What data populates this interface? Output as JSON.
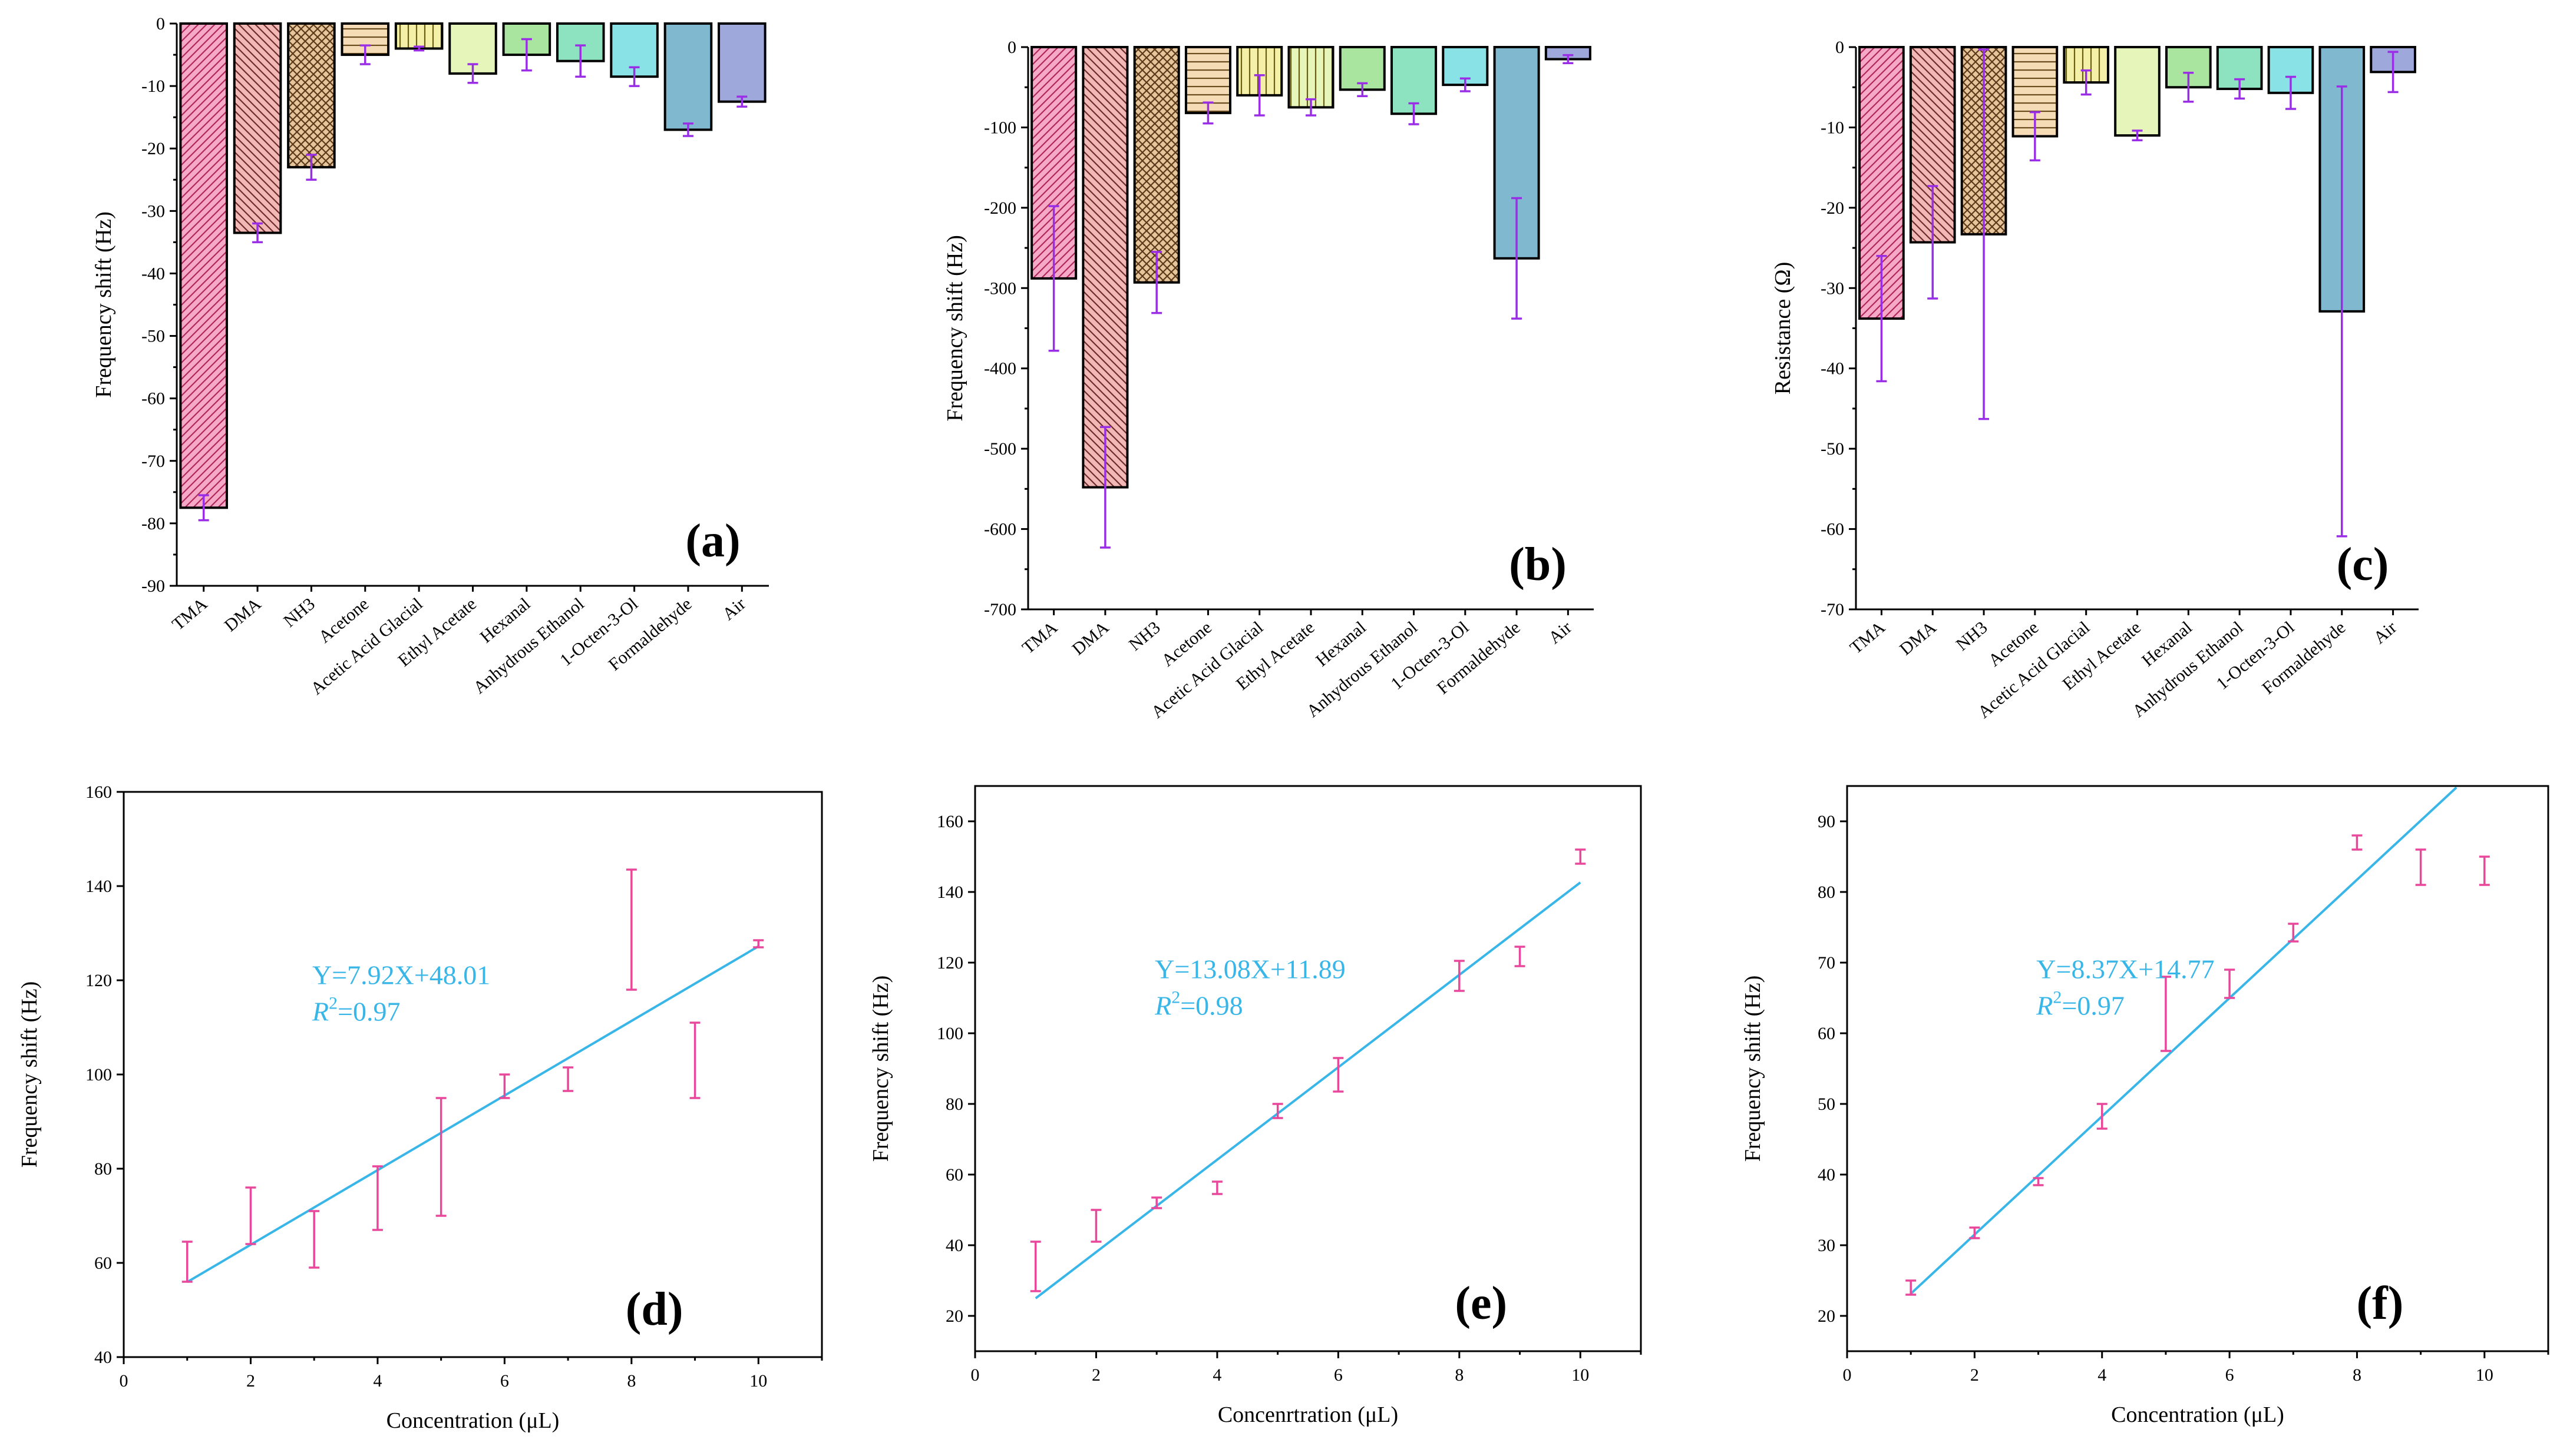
{
  "colors": {
    "bars": [
      "#F5A9C6",
      "#F2B8B5",
      "#E7C59A",
      "#F6DCB6",
      "#F5F0A8",
      "#E6F5B9",
      "#A9E59F",
      "#8DE3C0",
      "#88E2E6",
      "#7FB8CF",
      "#9EA8DA"
    ],
    "error_bars": "#9A2EE6",
    "scatter_error": "#E8479C",
    "fit_line": "#39B6E8"
  },
  "chart_data": [
    {
      "id": "a",
      "type": "bar",
      "panel_label": "(a)",
      "categories": [
        "TMA",
        "DMA",
        "NH3",
        "Acetone",
        "Acetic Acid Glacial",
        "Ethyl Acetate",
        "Hexanal",
        "Anhydrous Ethanol",
        "1-Octen-3-Ol",
        "Formaldehyde",
        "Air"
      ],
      "values": [
        -77.5,
        -33.5,
        -23,
        -5,
        -4,
        -8,
        -5,
        -6,
        -8.5,
        -17,
        -12.5
      ],
      "errors": [
        2,
        1.5,
        2,
        1.5,
        0.3,
        1.5,
        2.5,
        2.5,
        1.5,
        1,
        0.8
      ],
      "patterns": [
        "diag-right",
        "diag-left",
        "cross",
        "horiz",
        "vert",
        "none",
        "none",
        "none",
        "none",
        "none",
        "none"
      ],
      "ylabel": "Frequency shift (Hz)",
      "xlabel": "",
      "ylim": [
        -90,
        0
      ],
      "yticks": [
        0,
        -10,
        -20,
        -30,
        -40,
        -50,
        -60,
        -70,
        -80,
        -90
      ],
      "ytick_labels": [
        "0",
        "-10",
        "-20",
        "-30",
        "-40",
        "-50",
        "-60",
        "-70",
        "-80",
        "-90"
      ]
    },
    {
      "id": "b",
      "type": "bar",
      "panel_label": "(b)",
      "categories": [
        "TMA",
        "DMA",
        "NH3",
        "Acetone",
        "Acetic Acid Glacial",
        "Ethyl Acetate",
        "Hexanal",
        "Anhydrous Ethanol",
        "1-Octen-3-Ol",
        "Formaldehyde",
        "Air"
      ],
      "values": [
        -288,
        -548,
        -293,
        -82,
        -60,
        -75,
        -53,
        -83,
        -47,
        -263,
        -15
      ],
      "errors": [
        90,
        75,
        38,
        13,
        25,
        10,
        8,
        13,
        8,
        75,
        5
      ],
      "patterns": [
        "diag-right",
        "diag-left",
        "cross",
        "horiz",
        "vert",
        "vert",
        "none",
        "none",
        "none",
        "none",
        "none"
      ],
      "ylabel": "Frequency shift (Hz)",
      "xlabel": "",
      "ylim": [
        -700,
        0
      ],
      "yticks": [
        0,
        -100,
        -200,
        -300,
        -400,
        -500,
        -600,
        -700
      ],
      "ytick_labels": [
        "0",
        "-100",
        "-200",
        "-300",
        "-400",
        "-500",
        "-600",
        "-700"
      ]
    },
    {
      "id": "c",
      "type": "bar",
      "panel_label": "(c)",
      "categories": [
        "TMA",
        "DMA",
        "NH3",
        "Acetone",
        "Acetic Acid Glacial",
        "Ethyl Acetate",
        "Hexanal",
        "Anhydrous Ethanol",
        "1-Octen-3-Ol",
        "Formaldehyde",
        "Air"
      ],
      "values": [
        -33.8,
        -24.3,
        -23.3,
        -11.1,
        -4.4,
        -11,
        -5,
        -5.2,
        -5.7,
        -32.9,
        -3.1
      ],
      "errors": [
        7.8,
        7,
        23,
        3,
        1.5,
        0.6,
        1.8,
        1.2,
        2,
        28,
        2.5
      ],
      "patterns": [
        "diag-right",
        "diag-left",
        "cross",
        "horiz",
        "vert",
        "none",
        "none",
        "none",
        "none",
        "none",
        "none"
      ],
      "ylabel": "Resistance (Ω)",
      "xlabel": "",
      "ylim": [
        -70,
        0
      ],
      "yticks": [
        0,
        -10,
        -20,
        -30,
        -40,
        -50,
        -60,
        -70
      ],
      "ytick_labels": [
        "0",
        "-10",
        "-20",
        "-30",
        "-40",
        "-50",
        "-60",
        "-70"
      ]
    },
    {
      "id": "d",
      "type": "scatter",
      "panel_label": "(d)",
      "x": [
        1,
        2,
        3,
        4,
        5,
        6,
        7,
        8,
        9,
        10
      ],
      "y_low": [
        56,
        64,
        59,
        67,
        70,
        95,
        96.5,
        118,
        95,
        127
      ],
      "y_high": [
        64.5,
        76,
        71,
        80.5,
        95,
        100,
        101.5,
        143.5,
        111,
        128.5
      ],
      "equation": "Y=7.92X+48.01",
      "r2_label": "R",
      "r2_sup": "2",
      "r2_value": "=0.97",
      "fit_line": {
        "x1": 1,
        "y1": 55.93,
        "x2": 10,
        "y2": 127.21
      },
      "xlabel": "Concentration (μL)",
      "ylabel": "Frequency shift (Hz)",
      "xlim": [
        0,
        11
      ],
      "ylim": [
        40,
        160
      ],
      "xticks": [
        0,
        2,
        4,
        6,
        8,
        10
      ],
      "yticks": [
        40,
        60,
        80,
        100,
        120,
        140,
        160
      ]
    },
    {
      "id": "e",
      "type": "scatter",
      "panel_label": "(e)",
      "x": [
        1,
        2,
        3,
        4,
        5,
        6,
        8,
        9,
        10
      ],
      "y_low": [
        27,
        41,
        50.5,
        54.5,
        76,
        83.5,
        112,
        119,
        148
      ],
      "y_high": [
        41,
        50,
        53.5,
        58,
        80,
        93,
        120.5,
        124.5,
        152
      ],
      "equation": "Y=13.08X+11.89",
      "r2_label": "R",
      "r2_sup": "2",
      "r2_value": "=0.98",
      "fit_line": {
        "x1": 1,
        "y1": 24.97,
        "x2": 10,
        "y2": 142.69
      },
      "xlabel": "Concenrtration (μL)",
      "ylabel": "Frequency shift (Hz)",
      "xlim": [
        0,
        11
      ],
      "ylim": [
        10,
        170
      ],
      "xticks": [
        0,
        2,
        4,
        6,
        8,
        10
      ],
      "yticks": [
        20,
        40,
        60,
        80,
        100,
        120,
        140,
        160
      ]
    },
    {
      "id": "f",
      "type": "scatter",
      "panel_label": "(f)",
      "x": [
        1,
        2,
        3,
        4,
        5,
        6,
        7,
        8,
        9,
        10
      ],
      "y_low": [
        23,
        31,
        38.5,
        46.5,
        57.5,
        65,
        73,
        86,
        81,
        81
      ],
      "y_high": [
        25,
        32.5,
        39.5,
        50,
        68,
        69,
        75.5,
        88,
        86,
        85
      ],
      "equation": "Y=8.37X+14.77",
      "r2_label": "R",
      "r2_sup": "2",
      "r2_value": "=0.97",
      "fit_line": {
        "x1": 1,
        "y1": 23.14,
        "x2": 9.56,
        "y2": 94.79
      },
      "xlabel": "Concentration (μL)",
      "ylabel": "Frequency shift (Hz)",
      "xlim": [
        0,
        11
      ],
      "ylim": [
        15,
        95
      ],
      "xticks": [
        0,
        2,
        4,
        6,
        8,
        10
      ],
      "yticks": [
        20,
        30,
        40,
        50,
        60,
        70,
        80,
        90
      ]
    }
  ]
}
